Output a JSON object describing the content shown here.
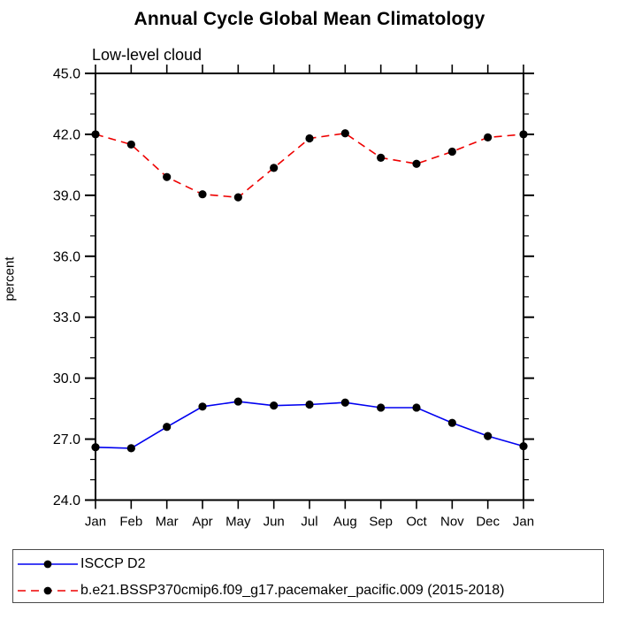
{
  "window": {
    "title": "Annual Cycle Global Mean Climatology"
  },
  "header": {
    "title": "Annual Cycle Global Mean Climatology",
    "subtitle": "Low-level cloud"
  },
  "colors": {
    "series1_line": "#0000f0",
    "series2_line": "#ee0000",
    "marker": "#000000",
    "axis": "#000000",
    "legend_border": "#4a4a4a",
    "background": "#ffffff"
  },
  "chart_data": {
    "type": "line",
    "title": "Annual Cycle Global Mean Climatology",
    "subtitle": "Low-level cloud",
    "xlabel": "",
    "ylabel": "percent",
    "x_categories": [
      "Jan",
      "Feb",
      "Mar",
      "Apr",
      "May",
      "Jun",
      "Jul",
      "Aug",
      "Sep",
      "Oct",
      "Nov",
      "Dec",
      "Jan"
    ],
    "ylim": [
      24.0,
      45.0
    ],
    "y_major_step": 3.0,
    "y_minor_step": 1.0,
    "y_tick_labels": [
      "24.0",
      "27.0",
      "30.0",
      "33.0",
      "36.0",
      "39.0",
      "42.0",
      "45.0"
    ],
    "grid": false,
    "legend_position": "bottom-box",
    "series": [
      {
        "name": "ISCCP D2",
        "color": "#0000f0",
        "line_style": "solid",
        "marker": "filled-circle",
        "marker_color": "#000000",
        "values": [
          26.6,
          26.55,
          27.6,
          28.6,
          28.85,
          28.65,
          28.7,
          28.8,
          28.55,
          28.55,
          27.8,
          27.15,
          26.65
        ]
      },
      {
        "name": "b.e21.BSSP370cmip6.f09_g17.pacemaker_pacific.009 (2015-2018)",
        "color": "#ee0000",
        "line_style": "dashed",
        "marker": "filled-circle",
        "marker_color": "#000000",
        "values": [
          42.0,
          41.5,
          39.9,
          39.05,
          38.9,
          40.35,
          41.8,
          42.05,
          40.85,
          40.55,
          41.15,
          41.85,
          42.0
        ]
      }
    ]
  }
}
